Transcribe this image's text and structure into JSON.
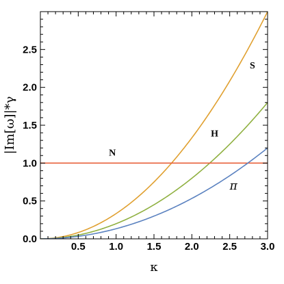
{
  "chart_data": {
    "type": "line",
    "xlabel": "κ",
    "ylabel": "|Im[ω]|*γ",
    "xlim": [
      0,
      3.0
    ],
    "ylim": [
      0,
      3.0
    ],
    "x_ticks": [
      0.5,
      1.0,
      1.5,
      2.0,
      2.5,
      3.0
    ],
    "x_tick_labels": [
      "0.5",
      "1.0",
      "1.5",
      "2.0",
      "2.5",
      "3.0"
    ],
    "y_ticks": [
      0,
      0.5,
      1.0,
      1.5,
      2.0,
      2.5
    ],
    "y_tick_labels": [
      "0.0",
      "0.5",
      "1.0",
      "1.5",
      "2.0",
      "2.5"
    ],
    "grid": false,
    "series": [
      {
        "name": "S",
        "color": "#e0a030",
        "x": [
          0,
          0.5,
          1.0,
          1.5,
          1.73,
          2.0,
          2.5,
          3.0
        ],
        "y": [
          0,
          0.08,
          0.33,
          0.75,
          1.0,
          1.33,
          2.08,
          3.0
        ]
      },
      {
        "name": "H",
        "color": "#8fb040",
        "x": [
          0,
          0.5,
          1.0,
          1.5,
          2.0,
          2.24,
          2.5,
          3.0
        ],
        "y": [
          0,
          0.05,
          0.2,
          0.45,
          0.8,
          1.0,
          1.25,
          1.8
        ]
      },
      {
        "name": "N",
        "color": "#e8603a",
        "x": [
          0,
          3.0
        ],
        "y": [
          1.0,
          1.0
        ]
      },
      {
        "name": "π",
        "color": "#5b82c0",
        "x": [
          0,
          0.5,
          1.0,
          1.5,
          2.0,
          2.5,
          2.74,
          3.0
        ],
        "y": [
          0,
          0.033,
          0.133,
          0.3,
          0.533,
          0.833,
          1.0,
          1.2
        ]
      }
    ],
    "annotations": [
      {
        "text": "S",
        "x": 2.8,
        "y": 2.25
      },
      {
        "text": "H",
        "x": 2.3,
        "y": 1.35
      },
      {
        "text": "N",
        "x": 0.95,
        "y": 1.1
      },
      {
        "text": "π",
        "x": 2.55,
        "y": 0.65
      }
    ]
  }
}
